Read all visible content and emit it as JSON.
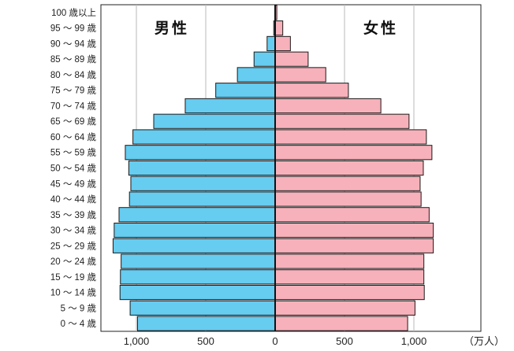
{
  "chart_data": {
    "type": "bar",
    "orientation": "horizontal",
    "categories": [
      "100 歳以上",
      "95 ～ 99 歳",
      "90 ～ 94 歳",
      "85 ～ 89 歳",
      "80 ～ 84 歳",
      "75 ～ 79 歳",
      "70 ～ 74 歳",
      "65 ～ 69 歳",
      "60 ～ 64 歳",
      "55 ～ 59 歳",
      "50 ～ 54 歳",
      "45 ～ 49 歳",
      "40 ～ 44 歳",
      "35 ～ 39 歳",
      "30 ～ 34 歳",
      "25 ～ 29 歳",
      "20 ～ 24 歳",
      "15 ～ 19 歳",
      "10 ～ 14 歳",
      "5 ～ 9 歳",
      "0 ～ 4 歳"
    ],
    "series": [
      {
        "name": "男性",
        "color": "#66ccf0",
        "values": [
          2,
          10,
          58,
          152,
          272,
          428,
          648,
          875,
          1025,
          1080,
          1055,
          1040,
          1050,
          1125,
          1160,
          1168,
          1110,
          1115,
          1118,
          1045,
          992
        ]
      },
      {
        "name": "女性",
        "color": "#f7b1ba",
        "values": [
          12,
          55,
          110,
          238,
          365,
          528,
          762,
          965,
          1090,
          1130,
          1068,
          1045,
          1052,
          1110,
          1140,
          1140,
          1072,
          1072,
          1075,
          1008,
          955
        ]
      }
    ],
    "tick_labels": [
      "1,000",
      "500",
      "0",
      "500",
      "1,000"
    ],
    "unit": "（万人）",
    "xlim": [
      -1250,
      1250
    ],
    "grid": true
  }
}
